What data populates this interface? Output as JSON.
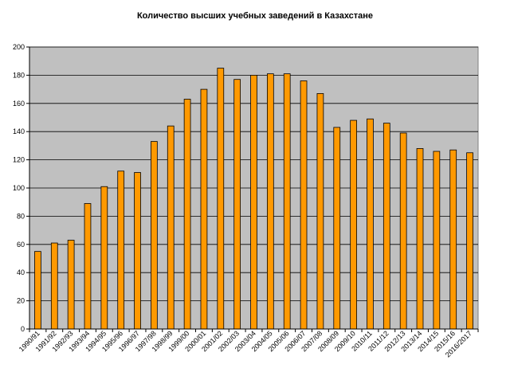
{
  "chart_data": {
    "type": "bar",
    "title": "Количество высших учебных заведений в Казахстане",
    "xlabel": "",
    "ylabel": "",
    "ylim": [
      0,
      200
    ],
    "yticks": [
      0,
      20,
      40,
      60,
      80,
      100,
      120,
      140,
      160,
      180,
      200
    ],
    "grid": true,
    "legend": "none",
    "colors": {
      "bar": "#FF9900",
      "bar_edge": "#000000",
      "plot_bg": "#C0C0C0",
      "grid": "#000000"
    },
    "categories": [
      "1990/91",
      "1991/92",
      "1992/93",
      "1993/94",
      "1994/95",
      "1995/96",
      "1996/97",
      "1997/98",
      "1998/99",
      "1999/00",
      "2000/01",
      "2001/02",
      "2002/03",
      "2003/04",
      "2004/05",
      "2005/06",
      "2006/07",
      "2007/08",
      "2008/09",
      "2009/10",
      "2010/11",
      "2011/12",
      "2012/13",
      "2013/14",
      "2014/15",
      "2015/16",
      "2016/2017"
    ],
    "values": [
      55,
      61,
      63,
      89,
      101,
      112,
      111,
      133,
      144,
      163,
      170,
      185,
      177,
      180,
      181,
      181,
      176,
      167,
      143,
      148,
      149,
      146,
      139,
      128,
      126,
      127,
      125
    ]
  }
}
